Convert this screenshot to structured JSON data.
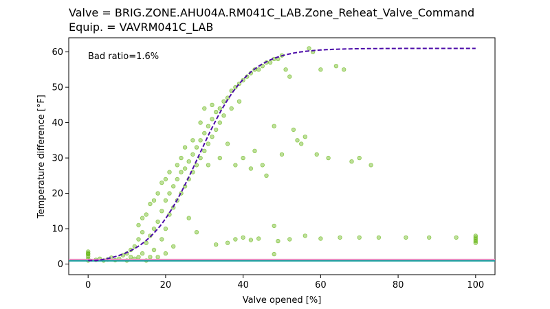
{
  "chart_data": {
    "type": "scatter",
    "title": "Valve = BRIG.ZONE.AHU04A.RM041C_LAB.Zone_Reheat_Valve_Command\nEquip. = VAVRM041C_LAB",
    "title_lines": [
      "Valve = BRIG.ZONE.AHU04A.RM041C_LAB.Zone_Reheat_Valve_Command",
      "Equip. = VAVRM041C_LAB"
    ],
    "xlabel": "Valve opened [%]",
    "ylabel": "Temperature difference [°F]",
    "xlim": [
      -5,
      105
    ],
    "ylim": [
      -3,
      64
    ],
    "xticks": [
      0,
      20,
      40,
      60,
      80,
      100
    ],
    "yticks": [
      0,
      10,
      20,
      30,
      40,
      50,
      60
    ],
    "grid": false,
    "annotation": "Bad ratio=1.6%",
    "colors": {
      "scatter": "#5ab000",
      "fit": "#4b0aa8",
      "line_pink": "#ee88c0",
      "line_teal": "#1aa0a0"
    },
    "series": [
      {
        "kind": "scatter",
        "points": [
          [
            0,
            1.5
          ],
          [
            0,
            2.2
          ],
          [
            0,
            3.0
          ],
          [
            0,
            3.5
          ],
          [
            0,
            1.0
          ],
          [
            0,
            2.8
          ],
          [
            2,
            1.2
          ],
          [
            3,
            1.5
          ],
          [
            4,
            1.0
          ],
          [
            5,
            1.3
          ],
          [
            6,
            1.8
          ],
          [
            7,
            1.1
          ],
          [
            8,
            1.5
          ],
          [
            9,
            2.5
          ],
          [
            10,
            3.0
          ],
          [
            10,
            1.0
          ],
          [
            11,
            4.0
          ],
          [
            11,
            2.0
          ],
          [
            12,
            5.0
          ],
          [
            12,
            1.5
          ],
          [
            13,
            7.0
          ],
          [
            13,
            2.0
          ],
          [
            13,
            11.0
          ],
          [
            14,
            3.0
          ],
          [
            14,
            9.0
          ],
          [
            14,
            13.0
          ],
          [
            15,
            6.0
          ],
          [
            15,
            14.0
          ],
          [
            15,
            1.0
          ],
          [
            16,
            8.0
          ],
          [
            16,
            17.0
          ],
          [
            16,
            2.0
          ],
          [
            17,
            10.0
          ],
          [
            17,
            4.0
          ],
          [
            17,
            18.0
          ],
          [
            18,
            12.0
          ],
          [
            18,
            20.0
          ],
          [
            18,
            2.0
          ],
          [
            19,
            15.0
          ],
          [
            19,
            7.0
          ],
          [
            19,
            23.0
          ],
          [
            20,
            18.0
          ],
          [
            20,
            24.0
          ],
          [
            20,
            10.0
          ],
          [
            20,
            3.0
          ],
          [
            21,
            20.0
          ],
          [
            21,
            14.0
          ],
          [
            21,
            26.0
          ],
          [
            22,
            22.0
          ],
          [
            22,
            16.0
          ],
          [
            22,
            5.0
          ],
          [
            23,
            24.0
          ],
          [
            23,
            18.0
          ],
          [
            23,
            28.0
          ],
          [
            24,
            26.0
          ],
          [
            24,
            20.0
          ],
          [
            24,
            30.0
          ],
          [
            25,
            27.0
          ],
          [
            25,
            22.0
          ],
          [
            25,
            33.0
          ],
          [
            26,
            29.0
          ],
          [
            26,
            24.0
          ],
          [
            26,
            13.0
          ],
          [
            27,
            31.0
          ],
          [
            27,
            26.0
          ],
          [
            27,
            35.0
          ],
          [
            28,
            33.0
          ],
          [
            28,
            28.0
          ],
          [
            28,
            9.0
          ],
          [
            29,
            35.0
          ],
          [
            29,
            30.0
          ],
          [
            29,
            40.0
          ],
          [
            30,
            37.0
          ],
          [
            30,
            32.0
          ],
          [
            30,
            44.0
          ],
          [
            31,
            39.0
          ],
          [
            31,
            34.0
          ],
          [
            31,
            28.0
          ],
          [
            32,
            41.0
          ],
          [
            32,
            36.0
          ],
          [
            32,
            45.0
          ],
          [
            33,
            43.0
          ],
          [
            33,
            38.0
          ],
          [
            34,
            44.0
          ],
          [
            34,
            40.0
          ],
          [
            34,
            30.0
          ],
          [
            35,
            46.0
          ],
          [
            35,
            42.0
          ],
          [
            36,
            47.0
          ],
          [
            36,
            34.0
          ],
          [
            37,
            49.0
          ],
          [
            37,
            44.0
          ],
          [
            38,
            50.0
          ],
          [
            38,
            28.0
          ],
          [
            39,
            51.0
          ],
          [
            39,
            46.0
          ],
          [
            40,
            52.0
          ],
          [
            40,
            30.0
          ],
          [
            41,
            53.0
          ],
          [
            42,
            54.0
          ],
          [
            42,
            27.0
          ],
          [
            43,
            55.0
          ],
          [
            43,
            32.0
          ],
          [
            44,
            55.0
          ],
          [
            45,
            56.0
          ],
          [
            45,
            28.0
          ],
          [
            46,
            57.0
          ],
          [
            46,
            25.0
          ],
          [
            47,
            57.0
          ],
          [
            48,
            58.0
          ],
          [
            48,
            39.0
          ],
          [
            49,
            58.0
          ],
          [
            50,
            59.0
          ],
          [
            50,
            31.0
          ],
          [
            51,
            55.0
          ],
          [
            52,
            53.0
          ],
          [
            53,
            38.0
          ],
          [
            54,
            35.0
          ],
          [
            55,
            34.0
          ],
          [
            56,
            36.0
          ],
          [
            57,
            61.0
          ],
          [
            58,
            60.0
          ],
          [
            59,
            31.0
          ],
          [
            60,
            55.0
          ],
          [
            62,
            30.0
          ],
          [
            64,
            56.0
          ],
          [
            66,
            55.0
          ],
          [
            68,
            29.0
          ],
          [
            70,
            30.0
          ],
          [
            73,
            28.0
          ],
          [
            33,
            5.5
          ],
          [
            36,
            6.0
          ],
          [
            38,
            7.0
          ],
          [
            40,
            7.5
          ],
          [
            42,
            6.8
          ],
          [
            44,
            7.2
          ],
          [
            48,
            10.8
          ],
          [
            48,
            2.8
          ],
          [
            49,
            6.5
          ],
          [
            52,
            7.0
          ],
          [
            56,
            8.0
          ],
          [
            60,
            7.2
          ],
          [
            65,
            7.5
          ],
          [
            70,
            7.5
          ],
          [
            75,
            7.5
          ],
          [
            82,
            7.5
          ],
          [
            88,
            7.5
          ],
          [
            95,
            7.5
          ],
          [
            100,
            8.0
          ],
          [
            100,
            7.0
          ],
          [
            100,
            6.5
          ],
          [
            100,
            6.0
          ],
          [
            100,
            7.5
          ]
        ]
      },
      {
        "kind": "fit",
        "shape": "logistic",
        "L": 61,
        "k": 0.155,
        "x0": 28.5,
        "min": 1.0,
        "x_range": [
          0,
          100
        ]
      },
      {
        "kind": "hline",
        "y": 1.3,
        "color_key": "line_pink"
      },
      {
        "kind": "hline",
        "y": 0.9,
        "color_key": "line_teal"
      }
    ]
  }
}
